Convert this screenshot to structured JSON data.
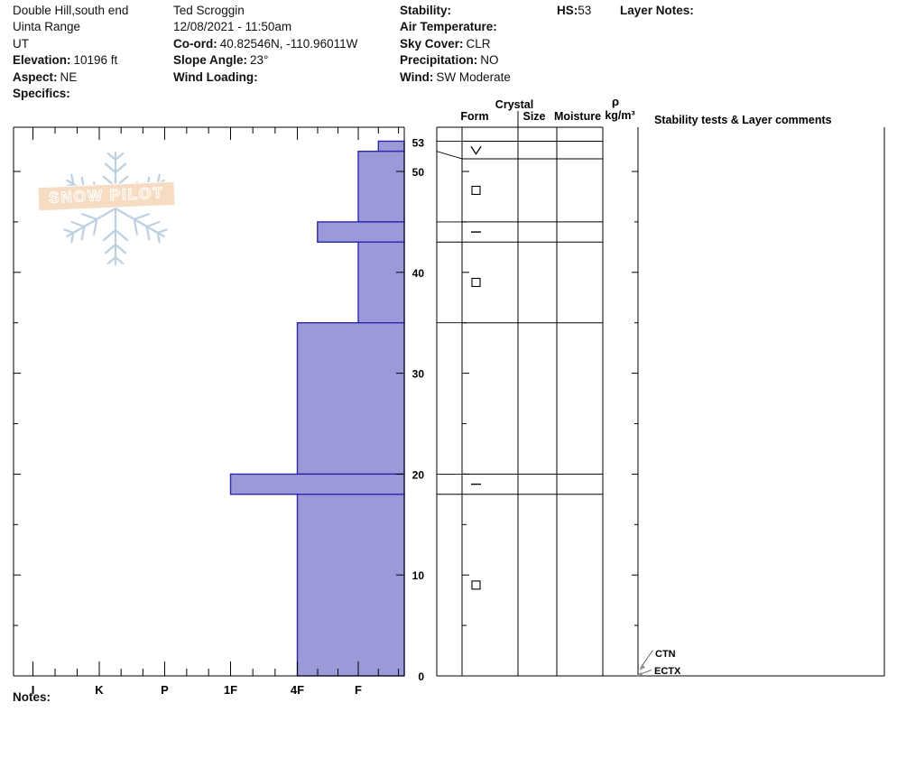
{
  "header": {
    "site": {
      "name": "Double Hill,south end",
      "range": "Uinta Range",
      "state": "UT",
      "elevation_label": "Elevation:",
      "elevation": "10196 ft",
      "aspect_label": "Aspect:",
      "aspect": "NE",
      "specifics_label": "Specifics:",
      "specifics": ""
    },
    "observer": {
      "name": "Ted Scroggin",
      "datetime": "12/08/2021 - 11:50am",
      "coord_label": "Co-ord:",
      "coord": "40.82546N, -110.96011W",
      "slope_angle_label": "Slope Angle:",
      "slope_angle": "23°",
      "wind_loading_label": "Wind Loading:",
      "wind_loading": ""
    },
    "conditions": {
      "stability_label": "Stability:",
      "stability": "",
      "air_temp_label": "Air Temperature:",
      "air_temp": "",
      "sky_label": "Sky Cover:",
      "sky": "CLR",
      "precip_label": "Precipitation:",
      "precip": "NO",
      "wind_label": "Wind:",
      "wind": "SW Moderate"
    },
    "hs": {
      "label": "HS:",
      "value": "53"
    },
    "layer_notes_label": "Layer Notes:"
  },
  "logo": {
    "text": "SNOW PILOT",
    "snowflake_icon": "snowflake",
    "banner_color": "#f6dcc2",
    "snowflake_color": "#bdd0e2"
  },
  "chart_data": {
    "type": "bar",
    "subtype": "snow-profile-hand-hardness",
    "title": "",
    "hs_cm": 53,
    "x_axis": {
      "categories": [
        "I",
        "K",
        "P",
        "1F",
        "4F",
        "F"
      ],
      "note": "hand hardness, hardest at left, minor ticks at thirds"
    },
    "y_axis": {
      "unit": "cm",
      "tick_labels": [
        0,
        10,
        20,
        30,
        40,
        50
      ],
      "surface_label": 53,
      "range_cm": [
        0,
        54.4
      ],
      "minor_tick_cm": 5
    },
    "layers": [
      {
        "top_cm": 53,
        "bottom_cm": 52,
        "hardness": "F-",
        "grain_form_symbol": "∨",
        "symbol_name": "v-open-symbol"
      },
      {
        "top_cm": 52,
        "bottom_cm": 45,
        "hardness": "F",
        "grain_form_symbol": "□",
        "symbol_name": "square-outline-symbol"
      },
      {
        "top_cm": 45,
        "bottom_cm": 43,
        "hardness": "4F-",
        "grain_form_symbol": "−",
        "symbol_name": "dash-symbol"
      },
      {
        "top_cm": 43,
        "bottom_cm": 35,
        "hardness": "F",
        "grain_form_symbol": "□",
        "symbol_name": "square-outline-symbol"
      },
      {
        "top_cm": 35,
        "bottom_cm": 20,
        "hardness": "4F",
        "grain_form_symbol": "",
        "symbol_name": ""
      },
      {
        "top_cm": 20,
        "bottom_cm": 18,
        "hardness": "1F",
        "grain_form_symbol": "−",
        "symbol_name": "dash-symbol"
      },
      {
        "top_cm": 18,
        "bottom_cm": 0,
        "hardness": "4F",
        "grain_form_symbol": "□",
        "symbol_name": "square-outline-symbol"
      }
    ],
    "bar_fill": "#9b99d7",
    "bar_border": "#2b28ad",
    "line_color": "#000000"
  },
  "profile_table": {
    "group_header": "Crystal",
    "columns": {
      "form": "Form",
      "size": "Size",
      "moisture": "Moisture",
      "density_symbol": "ρ",
      "density_unit": "kg/m³",
      "stability": "Stability tests & Layer comments"
    },
    "stability_tests": [
      {
        "label": "CTN"
      },
      {
        "label": "ECTX"
      }
    ]
  },
  "footer": {
    "notes_label": "Notes:"
  }
}
